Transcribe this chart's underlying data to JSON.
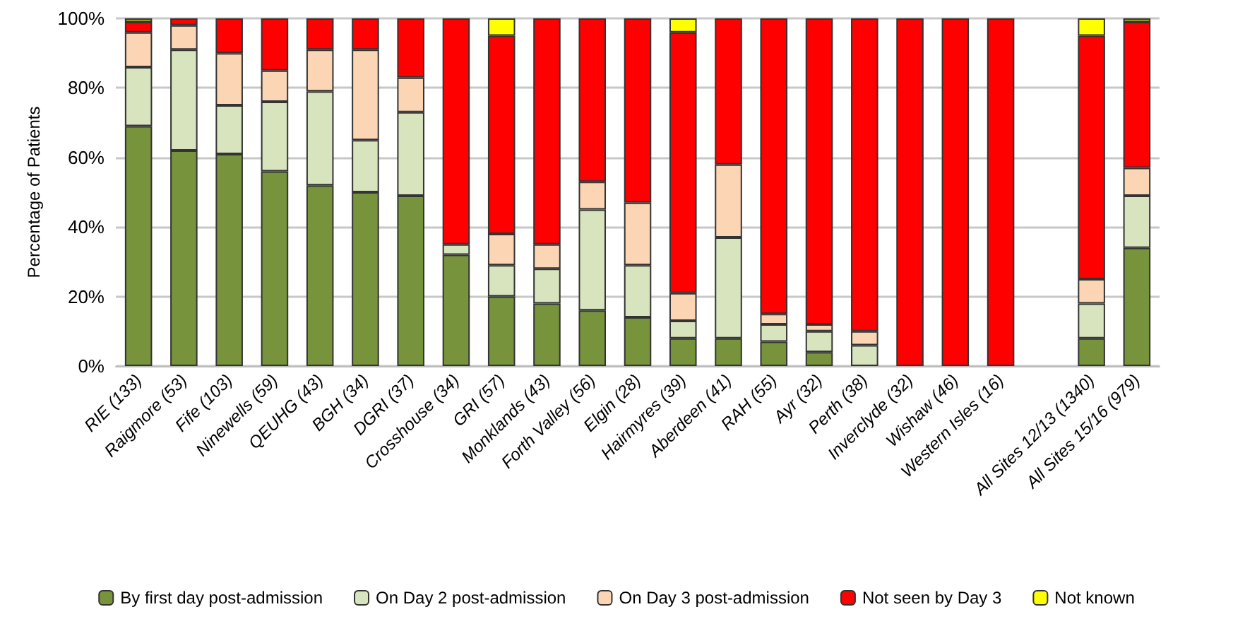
{
  "chart_data": {
    "type": "bar",
    "stacked": true,
    "ylabel": "Percentage of Patients",
    "categories": [
      "RIE (133)",
      "Raigmore (53)",
      "Fife (103)",
      "Ninewells (59)",
      "QEUHG (43)",
      "BGH (34)",
      "DGRI (37)",
      "Crosshouse (34)",
      "GRI (57)",
      "Monklands (43)",
      "Forth Valley (56)",
      "Elgin (28)",
      "Hairmyres (39)",
      "Aberdeen (41)",
      "RAH (55)",
      "Ayr (32)",
      "Perth (38)",
      "Inverclyde (32)",
      "Wishaw (46)",
      "Western Isles (16)",
      null,
      "All Sites 12/13 (1340)",
      "All Sites 15/16 (979)"
    ],
    "series": [
      {
        "name": "By first day post-admission",
        "color": "#77933c",
        "values": [
          69,
          62,
          61,
          56,
          52,
          50,
          49,
          32,
          20,
          18,
          16,
          14,
          8,
          8,
          7,
          4,
          0,
          0,
          0,
          0,
          null,
          8,
          34
        ]
      },
      {
        "name": "On Day 2 post-admission",
        "color": "#d7e4bd",
        "values": [
          17,
          29,
          14,
          20,
          27,
          15,
          24,
          3,
          9,
          10,
          29,
          15,
          5,
          29,
          5,
          6,
          6,
          0,
          0,
          0,
          null,
          10,
          15
        ]
      },
      {
        "name": "On Day 3 post-admission",
        "color": "#fcd5b5",
        "values": [
          10,
          7,
          15,
          9,
          12,
          26,
          10,
          0,
          9,
          7,
          8,
          18,
          8,
          21,
          3,
          2,
          4,
          0,
          0,
          0,
          null,
          7,
          8
        ]
      },
      {
        "name": "Not seen by Day 3",
        "color": "#ff0000",
        "values": [
          3,
          2,
          10,
          15,
          9,
          9,
          17,
          65,
          57,
          65,
          47,
          53,
          75,
          42,
          85,
          88,
          90,
          100,
          100,
          100,
          null,
          70,
          42
        ]
      },
      {
        "name": "Not known",
        "color": "#ffff00",
        "values": [
          1,
          0,
          0,
          0,
          0,
          0,
          0,
          0,
          5,
          0,
          0,
          0,
          4,
          0,
          0,
          0,
          0,
          0,
          0,
          0,
          null,
          5,
          1
        ]
      }
    ],
    "ylim": [
      0,
      100
    ],
    "yticks": [
      {
        "value": 0,
        "label": "0%"
      },
      {
        "value": 20,
        "label": "20%"
      },
      {
        "value": 40,
        "label": "40%"
      },
      {
        "value": 60,
        "label": "60%"
      },
      {
        "value": 80,
        "label": "80%"
      },
      {
        "value": 100,
        "label": "100%"
      }
    ],
    "grid": "y",
    "legend": "bottom"
  }
}
